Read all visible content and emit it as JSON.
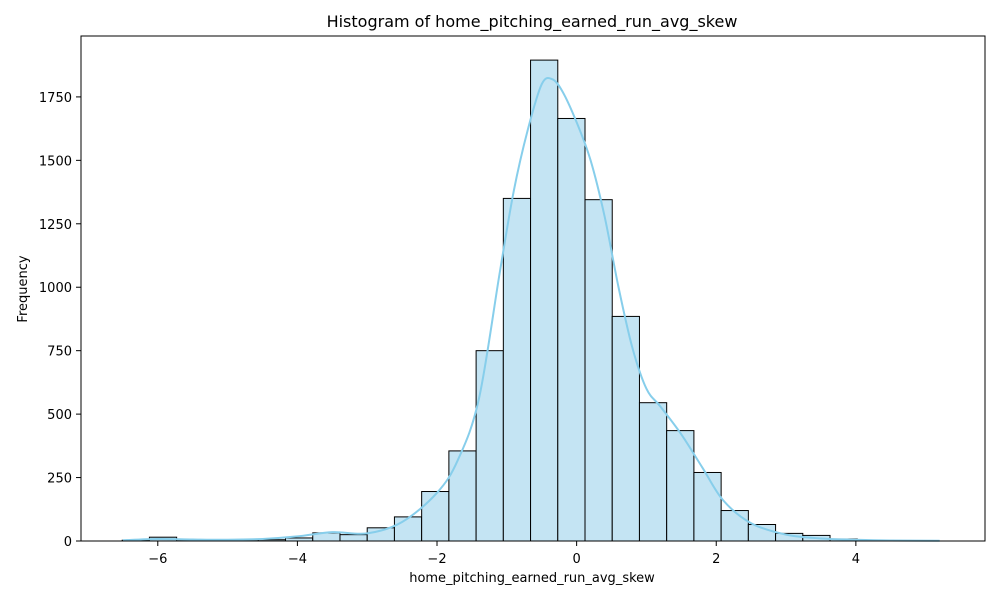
{
  "chart_data": {
    "type": "bar",
    "title": "Histogram of home_pitching_earned_run_avg_skew",
    "xlabel": "home_pitching_earned_run_avg_skew",
    "ylabel": "Frequency",
    "xlim": [
      -7.1,
      5.85
    ],
    "ylim": [
      0,
      1990
    ],
    "grid": false,
    "legend": "none",
    "x_ticks": [
      -6,
      -4,
      -2,
      0,
      2,
      4
    ],
    "x_tick_labels": [
      "−6",
      "−4",
      "−2",
      "0",
      "2",
      "4"
    ],
    "y_ticks": [
      0,
      250,
      500,
      750,
      1000,
      1250,
      1500,
      1750
    ],
    "y_tick_labels": [
      "0",
      "250",
      "500",
      "750",
      "1000",
      "1250",
      "1500",
      "1750"
    ],
    "bin_edges": [
      -6.51,
      -6.12,
      -5.73,
      -5.34,
      -4.95,
      -4.56,
      -4.17,
      -3.78,
      -3.39,
      -3.0,
      -2.61,
      -2.22,
      -1.83,
      -1.44,
      -1.05,
      -0.66,
      -0.27,
      0.12,
      0.51,
      0.9,
      1.29,
      1.68,
      2.07,
      2.46,
      2.85,
      3.24,
      3.63,
      4.02,
      4.41,
      4.8,
      5.19
    ],
    "counts": [
      3,
      15,
      5,
      2,
      5,
      5,
      12,
      32,
      25,
      52,
      95,
      195,
      355,
      750,
      1350,
      1895,
      1665,
      1345,
      885,
      545,
      435,
      270,
      120,
      65,
      30,
      22,
      8,
      3,
      2,
      1
    ],
    "kde": {
      "x": [
        -6.5,
        -6.0,
        -5.5,
        -5.0,
        -4.5,
        -4.0,
        -3.5,
        -3.0,
        -2.5,
        -2.0,
        -1.7,
        -1.4,
        -1.1,
        -0.9,
        -0.7,
        -0.5,
        -0.35,
        -0.2,
        0.0,
        0.2,
        0.4,
        0.6,
        0.8,
        1.0,
        1.2,
        1.5,
        1.8,
        2.1,
        2.5,
        3.0,
        3.5,
        4.0,
        4.5,
        5.2
      ],
      "y": [
        3,
        8,
        6,
        5,
        8,
        18,
        35,
        30,
        75,
        190,
        320,
        560,
        1060,
        1380,
        1620,
        1800,
        1820,
        1770,
        1650,
        1500,
        1280,
        1000,
        760,
        600,
        530,
        420,
        290,
        160,
        70,
        25,
        10,
        5,
        2,
        1
      ]
    },
    "colors": {
      "bar_fill": "#c4e4f3",
      "bar_edge": "#000000",
      "kde_line": "#87ceeb"
    }
  }
}
